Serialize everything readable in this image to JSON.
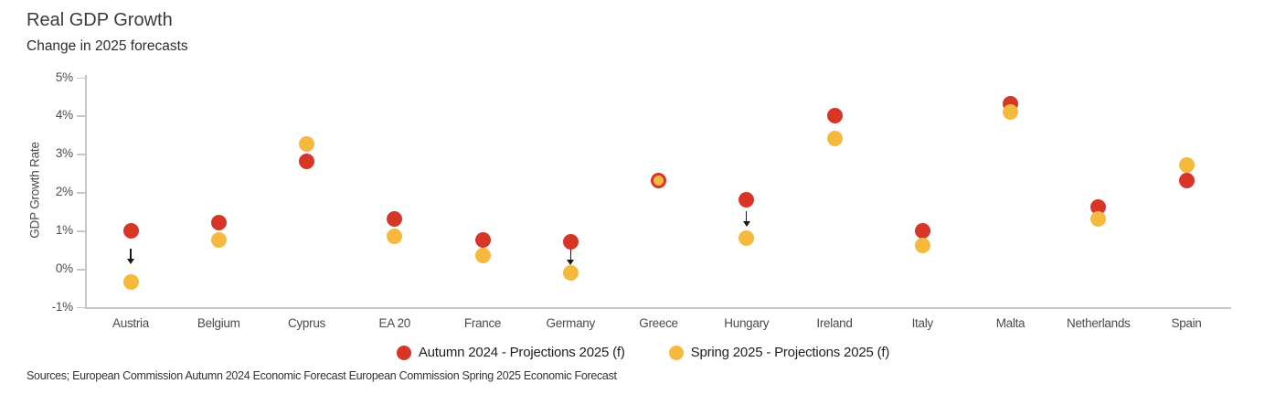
{
  "chart_data": {
    "type": "scatter",
    "title": "Real GDP Growth",
    "subtitle": "Change in 2025 forecasts",
    "ylabel": "GDP Growth Rate",
    "ylim": [
      -1,
      5
    ],
    "yticks": [
      "5%",
      "4%",
      "3%",
      "2%",
      "1%",
      "0%",
      "-1%"
    ],
    "grid": false,
    "legend_position": "bottom-center",
    "categories": [
      "Austria",
      "Belgium",
      "Cyprus",
      "EA 20",
      "France",
      "Germany",
      "Greece",
      "Hungary",
      "Ireland",
      "Italy",
      "Malta",
      "Netherlands",
      "Spain"
    ],
    "series": [
      {
        "name": "Autumn 2024 - Projections 2025 (f)",
        "color": "#d63528",
        "values": [
          1.0,
          1.2,
          2.8,
          1.3,
          0.75,
          0.7,
          2.3,
          1.8,
          4.0,
          1.0,
          4.3,
          1.6,
          2.3
        ]
      },
      {
        "name": "Spring 2025 - Projections 2025 (f)",
        "color": "#f5b93e",
        "values": [
          -0.35,
          0.75,
          3.25,
          0.85,
          0.35,
          -0.1,
          2.3,
          0.8,
          3.4,
          0.6,
          4.1,
          1.3,
          2.7
        ]
      }
    ],
    "downgrade_arrow_categories": [
      "Austria",
      "Germany",
      "Hungary"
    ],
    "source": "Sources; European Commission Autumn 2024 Economic Forecast European Commission Spring 2025 Economic Forecast"
  }
}
